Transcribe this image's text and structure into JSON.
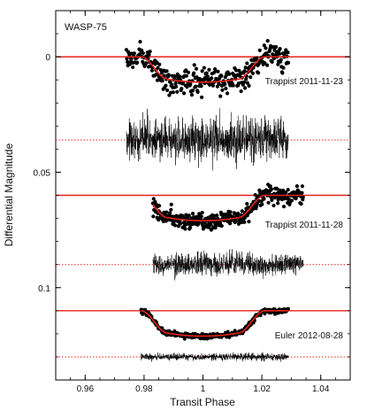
{
  "chart_data": {
    "type": "scatter",
    "title": "WASP-75",
    "xlabel": "Transit Phase",
    "ylabel": "Differential Magnitude",
    "xlim": [
      0.95,
      1.05
    ],
    "ylim": [
      0.14,
      -0.02
    ],
    "y_inverted": true,
    "grid": false,
    "x_ticks": [
      0.96,
      0.98,
      1.0,
      1.02,
      1.04
    ],
    "x_tick_labels": [
      "0.96",
      "0.98",
      "1",
      "1.02",
      "1.04"
    ],
    "y_ticks": [
      0,
      0.05,
      0.1
    ],
    "y_tick_labels": [
      "0",
      "0.05",
      "0.1"
    ],
    "model_color": "#e8231b",
    "point_color": "#000000",
    "series": [
      {
        "name": "Trappist 2011-11-23",
        "x_range": [
          0.974,
          1.029
        ],
        "baseline": 0.0,
        "transit_depth": 0.011,
        "transit_duration_phase": 0.042,
        "ingress_duration_phase": 0.009,
        "point_scatter": 0.004,
        "residual_baseline": 0.036,
        "residual_scatter": 0.004
      },
      {
        "name": "Trappist 2011-11-28",
        "x_range": [
          0.983,
          1.034
        ],
        "baseline": 0.06,
        "transit_depth": 0.011,
        "transit_duration_phase": 0.042,
        "ingress_duration_phase": 0.009,
        "point_scatter": 0.0025,
        "residual_baseline": 0.09,
        "residual_scatter": 0.0025
      },
      {
        "name": "Euler 2012-08-28",
        "x_range": [
          0.979,
          1.029
        ],
        "baseline": 0.11,
        "transit_depth": 0.011,
        "transit_duration_phase": 0.042,
        "ingress_duration_phase": 0.009,
        "point_scatter": 0.0008,
        "residual_baseline": 0.13,
        "residual_scatter": 0.0008
      }
    ]
  }
}
